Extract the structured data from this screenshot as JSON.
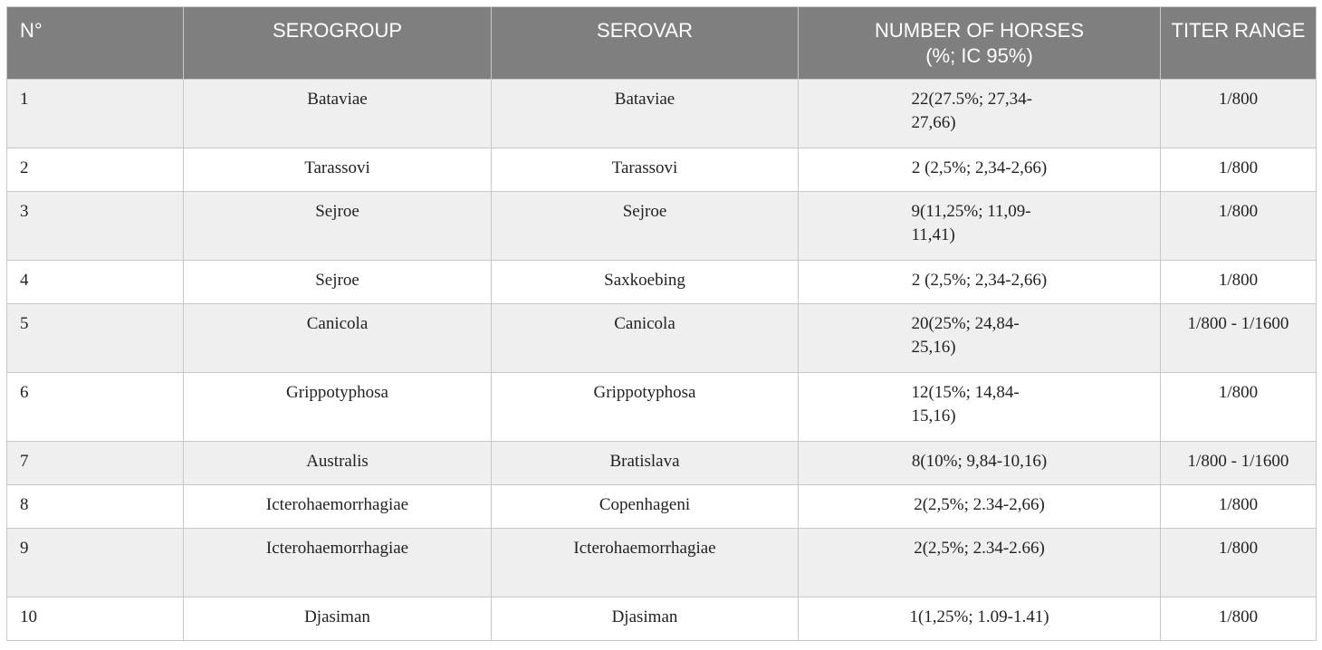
{
  "table": {
    "headers": {
      "no": "N°",
      "serogroup": "SEROGROUP",
      "serovar": "SEROVAR",
      "horses_line1": "NUMBER OF HORSES",
      "horses_line2": "(%; IC 95%)",
      "titer": "TITER RANGE"
    },
    "rows": [
      {
        "no": "1",
        "serogroup": "Bataviae",
        "serovar": "Bataviae",
        "horses": "22(27.5%; 27,34-27,66)",
        "titer": "1/800"
      },
      {
        "no": "2",
        "serogroup": "Tarassovi",
        "serovar": "Tarassovi",
        "horses": "2 (2,5%; 2,34-2,66)",
        "titer": "1/800"
      },
      {
        "no": "3",
        "serogroup": "Sejroe",
        "serovar": "Sejroe",
        "horses": "9(11,25%; 11,09-11,41)",
        "titer": "1/800"
      },
      {
        "no": "4",
        "serogroup": "Sejroe",
        "serovar": "Saxkoebing",
        "horses": "2 (2,5%; 2,34-2,66)",
        "titer": "1/800"
      },
      {
        "no": "5",
        "serogroup": "Canicola",
        "serovar": "Canicola",
        "horses": "20(25%; 24,84-25,16)",
        "titer": "1/800 - 1/1600"
      },
      {
        "no": "6",
        "serogroup": "Grippotyphosa",
        "serovar": "Grippotyphosa",
        "horses": "12(15%; 14,84-15,16)",
        "titer": "1/800"
      },
      {
        "no": "7",
        "serogroup": "Australis",
        "serovar": "Bratislava",
        "horses": "8(10%; 9,84-10,16)",
        "titer": "1/800 - 1/1600"
      },
      {
        "no": "8",
        "serogroup": "Icterohaemorrhagiae",
        "serovar": "Copenhageni",
        "horses": "2(2,5%; 2.34-2,66)",
        "titer": "1/800"
      },
      {
        "no": "9",
        "serogroup": "Icterohaemorrhagiae",
        "serovar": "Icterohaemorrhagiae",
        "horses": "2(2,5%; 2.34-2.66)",
        "titer": "1/800"
      },
      {
        "no": "10",
        "serogroup": "Djasiman",
        "serovar": "Djasiman",
        "horses": "1(1,25%; 1.09-1.41)",
        "titer": "1/800"
      }
    ]
  }
}
